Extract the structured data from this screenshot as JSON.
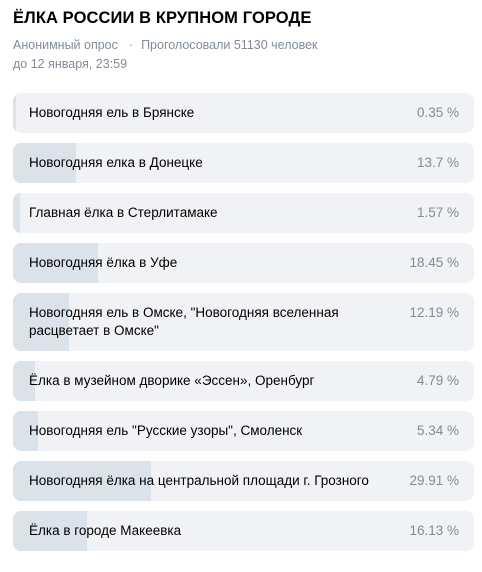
{
  "poll": {
    "title": "ЁЛКА РОССИИ В КРУПНОМ ГОРОДЕ",
    "type": "Анонимный опрос",
    "separator": "·",
    "voters": "Проголосовали 51130 человек",
    "deadline": "до 12 января, 23:59"
  },
  "colors": {
    "track": "#f0f2f5",
    "fill": "#dce2ea",
    "muted": "#818c99"
  },
  "options": [
    {
      "label": "Новогодняя ель в Брянске",
      "percent_text": "0.35 %",
      "percent": 0.35
    },
    {
      "label": "Новогодняя елка в Донецке",
      "percent_text": "13.7 %",
      "percent": 13.7
    },
    {
      "label": "Главная ёлка в Стерлитамаке",
      "percent_text": "1.57 %",
      "percent": 1.57
    },
    {
      "label": "Новогодняя ёлка в Уфе",
      "percent_text": "18.45 %",
      "percent": 18.45
    },
    {
      "label": "Новогодняя ель в Омске, \"Новогодняя вселенная расцветает в Омске\"",
      "percent_text": "12.19 %",
      "percent": 12.19
    },
    {
      "label": "Ёлка в музейном дворике «Эссен», Оренбург",
      "percent_text": "4.79 %",
      "percent": 4.79
    },
    {
      "label": "Новогодняя ель \"Русские узоры\", Смоленск",
      "percent_text": "5.34 %",
      "percent": 5.34
    },
    {
      "label": "Новогодняя ёлка на центральной площади г. Грозного",
      "percent_text": "29.91 %",
      "percent": 29.91
    },
    {
      "label": "Ёлка в городе Макеевка",
      "percent_text": "16.13 %",
      "percent": 16.13
    }
  ]
}
